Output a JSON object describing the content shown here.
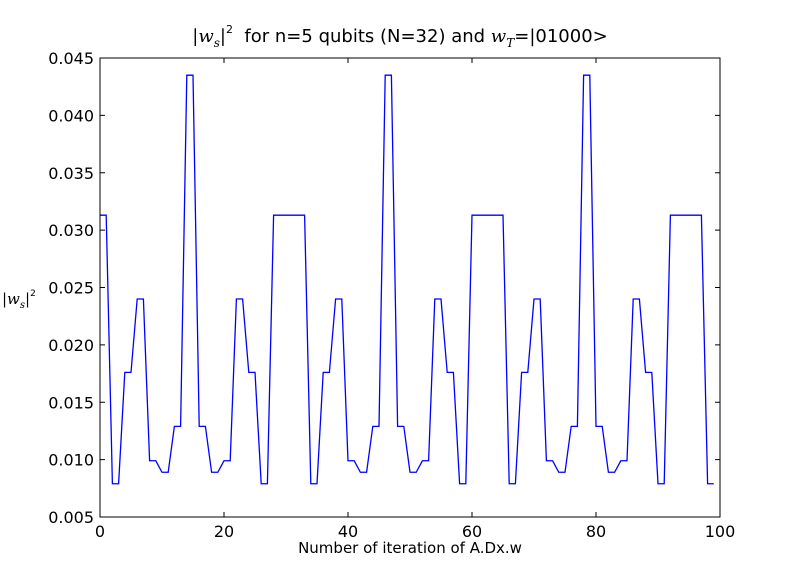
{
  "chart_data": {
    "type": "line",
    "title_parts": {
      "left_math": "|w",
      "left_sub": "s",
      "left_close": "|",
      "left_sup": "2",
      "middle": "  for n=5 qubits (N=32) and ",
      "right_math": "w",
      "right_sub": "T",
      "right_eq": "=",
      "right_text": "|01000>"
    },
    "xlabel": "Number of iteration of A.Dx.w",
    "ylabel_parts": {
      "math": "|w",
      "sub": "s",
      "close": "|",
      "sup": "2"
    },
    "xlim": [
      0,
      100
    ],
    "ylim": [
      0.005,
      0.045
    ],
    "xticks": [
      0,
      20,
      40,
      60,
      80,
      100
    ],
    "xtick_labels": [
      "0",
      "20",
      "40",
      "60",
      "80",
      "100"
    ],
    "yticks": [
      0.005,
      0.01,
      0.015,
      0.02,
      0.025,
      0.03,
      0.035,
      0.04,
      0.045
    ],
    "ytick_labels": [
      "0.005",
      "0.010",
      "0.015",
      "0.020",
      "0.025",
      "0.030",
      "0.035",
      "0.040",
      "0.045"
    ],
    "grid": false,
    "series": [
      {
        "color": "#0000ff",
        "x": [
          0,
          1,
          2,
          3,
          4,
          5,
          6,
          7,
          8,
          9,
          10,
          11,
          12,
          13,
          14,
          15,
          16,
          17,
          18,
          19,
          20,
          21,
          22,
          23,
          24,
          25,
          26,
          27,
          28,
          29,
          30,
          31,
          32,
          33,
          34,
          35,
          36,
          37,
          38,
          39,
          40,
          41,
          42,
          43,
          44,
          45,
          46,
          47,
          48,
          49,
          50,
          51,
          52,
          53,
          54,
          55,
          56,
          57,
          58,
          59,
          60,
          61,
          62,
          63,
          64,
          65,
          66,
          67,
          68,
          69,
          70,
          71,
          72,
          73,
          74,
          75,
          76,
          77,
          78,
          79,
          80,
          81,
          82,
          83,
          84,
          85,
          86,
          87,
          88,
          89,
          90,
          91,
          92,
          93,
          94,
          95,
          96,
          97,
          98,
          99
        ],
        "y": [
          0.0313,
          0.0313,
          0.0079,
          0.0079,
          0.0176,
          0.0176,
          0.024,
          0.024,
          0.0099,
          0.0099,
          0.0089,
          0.0089,
          0.0129,
          0.0129,
          0.0435,
          0.0435,
          0.0129,
          0.0129,
          0.0089,
          0.0089,
          0.0099,
          0.0099,
          0.024,
          0.024,
          0.0176,
          0.0176,
          0.0079,
          0.0079,
          0.0313,
          0.0313,
          0.0313,
          0.0313,
          0.0313,
          0.0313,
          0.0079,
          0.0079,
          0.0176,
          0.0176,
          0.024,
          0.024,
          0.0099,
          0.0099,
          0.0089,
          0.0089,
          0.0129,
          0.0129,
          0.0435,
          0.0435,
          0.0129,
          0.0129,
          0.0089,
          0.0089,
          0.0099,
          0.0099,
          0.024,
          0.024,
          0.0176,
          0.0176,
          0.0079,
          0.0079,
          0.0313,
          0.0313,
          0.0313,
          0.0313,
          0.0313,
          0.0313,
          0.0079,
          0.0079,
          0.0176,
          0.0176,
          0.024,
          0.024,
          0.0099,
          0.0099,
          0.0089,
          0.0089,
          0.0129,
          0.0129,
          0.0435,
          0.0435,
          0.0129,
          0.0129,
          0.0089,
          0.0089,
          0.0099,
          0.0099,
          0.024,
          0.024,
          0.0176,
          0.0176,
          0.0079,
          0.0079,
          0.0313,
          0.0313,
          0.0313,
          0.0313,
          0.0313,
          0.0313,
          0.0079,
          0.0079
        ]
      }
    ]
  }
}
